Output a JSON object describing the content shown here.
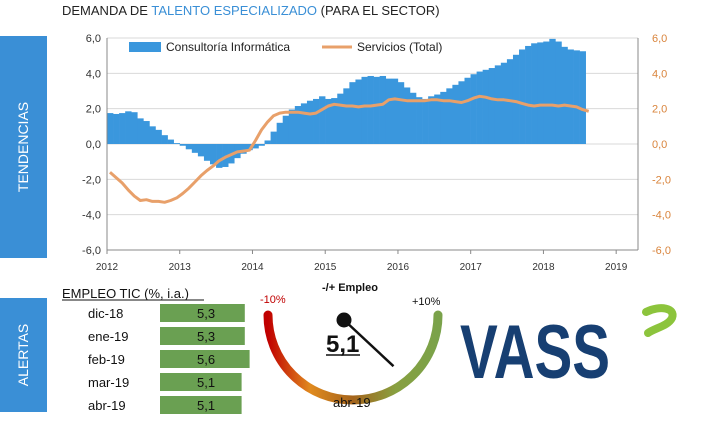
{
  "title": {
    "part1": "DEMANDA DE ",
    "part2": "TALENTO ESPECIALIZADO",
    "part3": " (PARA EL SECTOR)"
  },
  "side_labels": {
    "tendencias": "TENDENCIAS",
    "alertas": "ALERTAS"
  },
  "colors": {
    "side_blue": "#3a8fd6",
    "area_blue": "#3a97dd",
    "line_orange": "#e8a06a",
    "bar_green": "#6aa052",
    "vass_navy": "#173f72",
    "vass_green": "#8cc43c"
  },
  "chart_data": {
    "type": "area",
    "title": "DEMANDA DE TALENTO ESPECIALIZADO (PARA EL SECTOR)",
    "x_start": 2012.0,
    "x_step": 0.0833,
    "xlim": [
      2012.0,
      2019.3
    ],
    "x_tick_labels": [
      "2012",
      "2013",
      "2014",
      "2015",
      "2016",
      "2017",
      "2018",
      "2019"
    ],
    "y_left_ticks": [
      "6,0",
      "4,0",
      "2,0",
      "0,0",
      "-2,0",
      "-4,0",
      "-6,0"
    ],
    "y_right_ticks": [
      "6,0",
      "4,0",
      "2,0",
      "0,0",
      "-2,0",
      "-4,0",
      "-6,0"
    ],
    "ylim": [
      -6,
      6
    ],
    "legend_position": "top",
    "series": [
      {
        "name": "Consultoría Informática",
        "kind": "area",
        "values": [
          1.75,
          1.7,
          1.75,
          1.85,
          1.8,
          1.45,
          1.3,
          1.0,
          0.8,
          0.5,
          0.25,
          0.05,
          -0.1,
          -0.3,
          -0.5,
          -0.7,
          -0.95,
          -1.15,
          -1.35,
          -1.3,
          -1.1,
          -0.8,
          -0.55,
          -0.35,
          -0.25,
          -0.1,
          0.2,
          0.7,
          1.2,
          1.6,
          1.95,
          2.15,
          2.3,
          2.45,
          2.55,
          2.7,
          2.55,
          2.6,
          2.85,
          3.15,
          3.5,
          3.65,
          3.8,
          3.85,
          3.8,
          3.85,
          3.7,
          3.7,
          3.5,
          3.2,
          2.9,
          2.65,
          2.55,
          2.7,
          2.8,
          2.95,
          3.15,
          3.35,
          3.55,
          3.75,
          3.95,
          4.1,
          4.2,
          4.3,
          4.45,
          4.6,
          4.8,
          5.05,
          5.35,
          5.55,
          5.7,
          5.75,
          5.8,
          5.95,
          5.8,
          5.5,
          5.35,
          5.3,
          5.25
        ]
      },
      {
        "name": "Servicios (Total)",
        "kind": "line",
        "values": [
          -1.6,
          -1.9,
          -2.2,
          -2.6,
          -2.95,
          -3.2,
          -3.15,
          -3.25,
          -3.25,
          -3.3,
          -3.2,
          -3.05,
          -2.8,
          -2.5,
          -2.15,
          -1.8,
          -1.5,
          -1.25,
          -0.95,
          -0.75,
          -0.6,
          -0.45,
          -0.4,
          -0.35,
          0.2,
          0.8,
          1.25,
          1.6,
          1.75,
          1.8,
          1.8,
          1.8,
          1.75,
          1.7,
          1.75,
          1.95,
          2.15,
          2.25,
          2.2,
          2.15,
          2.15,
          2.1,
          2.15,
          2.15,
          2.2,
          2.25,
          2.5,
          2.55,
          2.5,
          2.45,
          2.45,
          2.45,
          2.45,
          2.5,
          2.5,
          2.45,
          2.45,
          2.4,
          2.35,
          2.45,
          2.6,
          2.7,
          2.65,
          2.55,
          2.5,
          2.5,
          2.45,
          2.4,
          2.3,
          2.2,
          2.15,
          2.2,
          2.2,
          2.2,
          2.15,
          2.2,
          2.15,
          2.1,
          1.95,
          1.85
        ]
      }
    ]
  },
  "empleo": {
    "header": "EMPLEO TIC (%, i.a.)",
    "scale_max": 6,
    "rows": [
      {
        "month": "dic-18",
        "value_text": "5,3",
        "value": 5.3
      },
      {
        "month": "ene-19",
        "value_text": "5,3",
        "value": 5.3
      },
      {
        "month": "feb-19",
        "value_text": "5,6",
        "value": 5.6
      },
      {
        "month": "mar-19",
        "value_text": "5,1",
        "value": 5.1
      },
      {
        "month": "abr-19",
        "value_text": "5,1",
        "value": 5.1
      }
    ]
  },
  "gauge": {
    "label": "-/+ Empleo",
    "min_label": "-10%",
    "max_label": "+10%",
    "min": -10,
    "max": 10,
    "value_text": "5,1",
    "value": 5.1,
    "month": "abr-19"
  },
  "logo": {
    "text": "VASS"
  }
}
